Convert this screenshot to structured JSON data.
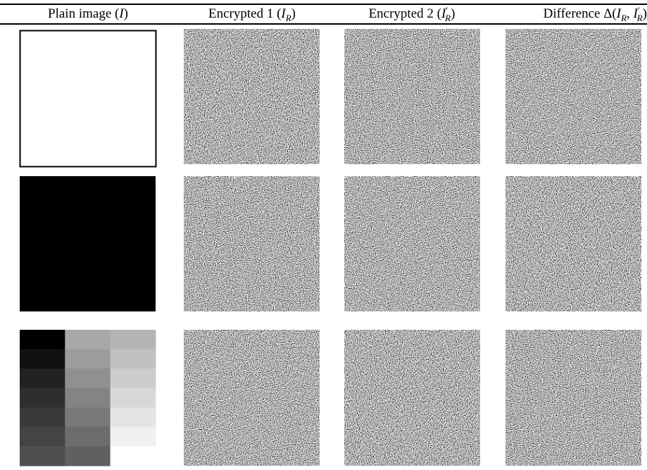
{
  "table": {
    "headers": [
      [
        "Plain image (",
        "I",
        ")"
      ],
      [
        "Encrypted 1 (",
        "I",
        "R",
        ")"
      ],
      [
        "Encrypted 2 (",
        "I",
        "′",
        "R",
        ")"
      ],
      [
        "Difference Δ(",
        "I",
        "R",
        ", ",
        "I",
        "′",
        "R",
        ")"
      ]
    ]
  }
}
